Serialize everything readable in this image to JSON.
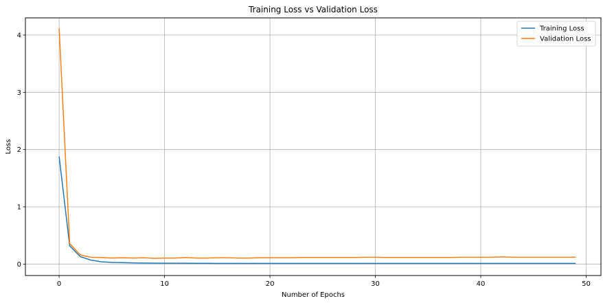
{
  "chart_data": {
    "type": "line",
    "title": "Training Loss vs Validation Loss",
    "xlabel": "Number of Epochs",
    "ylabel": "Loss",
    "xlim": [
      -3.2,
      51.4
    ],
    "ylim": [
      -0.2,
      4.3
    ],
    "xticks": [
      0,
      10,
      20,
      30,
      40,
      50
    ],
    "yticks": [
      0,
      1,
      2,
      3,
      4
    ],
    "grid": true,
    "legend_position": "top-right",
    "x": [
      0,
      1,
      2,
      3,
      4,
      5,
      6,
      7,
      8,
      9,
      10,
      11,
      12,
      13,
      14,
      15,
      16,
      17,
      18,
      19,
      20,
      21,
      22,
      23,
      24,
      25,
      26,
      27,
      28,
      29,
      30,
      31,
      32,
      33,
      34,
      35,
      36,
      37,
      38,
      39,
      40,
      41,
      42,
      43,
      44,
      45,
      46,
      47,
      48,
      49
    ],
    "series": [
      {
        "name": "Training Loss",
        "color": "#1f77b4",
        "values": [
          1.88,
          0.32,
          0.13,
          0.07,
          0.04,
          0.03,
          0.025,
          0.02,
          0.018,
          0.016,
          0.015,
          0.014,
          0.014,
          0.013,
          0.013,
          0.012,
          0.012,
          0.012,
          0.011,
          0.011,
          0.011,
          0.011,
          0.011,
          0.011,
          0.011,
          0.011,
          0.011,
          0.011,
          0.011,
          0.011,
          0.011,
          0.011,
          0.011,
          0.011,
          0.011,
          0.011,
          0.011,
          0.011,
          0.011,
          0.011,
          0.011,
          0.011,
          0.011,
          0.011,
          0.011,
          0.011,
          0.011,
          0.011,
          0.011,
          0.011
        ]
      },
      {
        "name": "Validation Loss",
        "color": "#ff7f0e",
        "values": [
          4.12,
          0.36,
          0.16,
          0.12,
          0.115,
          0.105,
          0.11,
          0.105,
          0.11,
          0.1,
          0.105,
          0.105,
          0.115,
          0.105,
          0.105,
          0.11,
          0.11,
          0.105,
          0.105,
          0.11,
          0.11,
          0.11,
          0.11,
          0.115,
          0.115,
          0.115,
          0.115,
          0.115,
          0.115,
          0.12,
          0.12,
          0.115,
          0.115,
          0.115,
          0.115,
          0.115,
          0.115,
          0.115,
          0.12,
          0.12,
          0.12,
          0.12,
          0.125,
          0.12,
          0.12,
          0.12,
          0.12,
          0.12,
          0.12,
          0.12
        ]
      }
    ]
  }
}
